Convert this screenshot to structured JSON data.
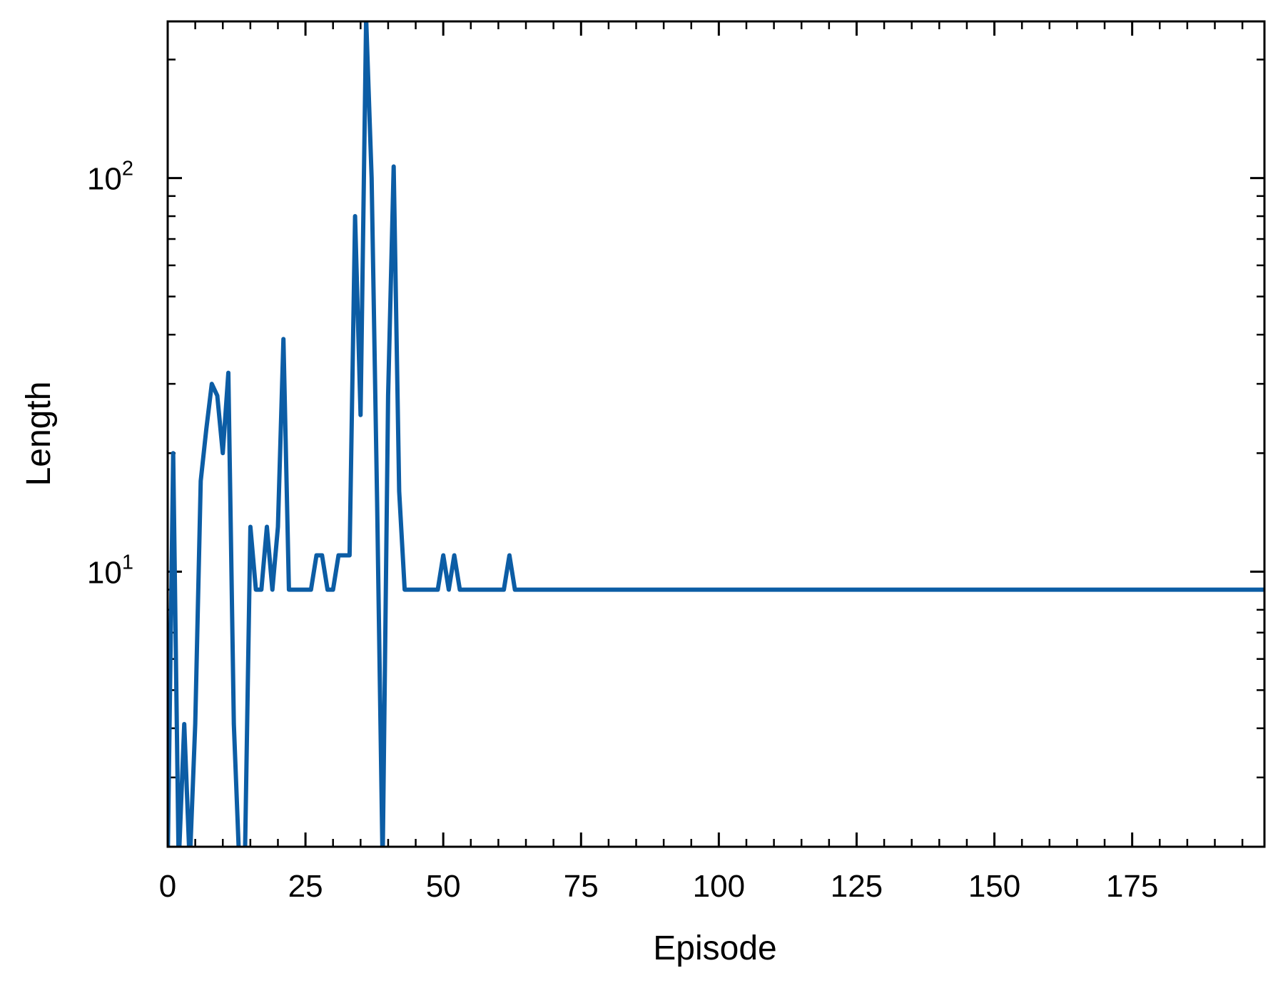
{
  "chart_data": {
    "type": "line",
    "xlabel": "Episode",
    "ylabel": "Length",
    "xlim": [
      0,
      199
    ],
    "ylim": [
      2,
      250
    ],
    "yscale": "log",
    "grid": false,
    "x_ticks": [
      0,
      25,
      50,
      75,
      100,
      125,
      150,
      175
    ],
    "y_ticks": [
      {
        "value": 10,
        "base": "10",
        "exponent": "1"
      },
      {
        "value": 100,
        "base": "10",
        "exponent": "2"
      }
    ],
    "line_color": "#0c5da5",
    "series": [
      {
        "color": "#0c5da5",
        "x": [
          0,
          1,
          2,
          3,
          4,
          5,
          6,
          7,
          8,
          9,
          10,
          11,
          12,
          13,
          14,
          15,
          16,
          17,
          18,
          19,
          20,
          21,
          22,
          23,
          24,
          25,
          26,
          27,
          28,
          29,
          30,
          31,
          32,
          33,
          34,
          35,
          36,
          37,
          38,
          39,
          40,
          41,
          42,
          43,
          44,
          45,
          46,
          47,
          48,
          49,
          50,
          51,
          52,
          53,
          54,
          55,
          56,
          57,
          58,
          59,
          60,
          61,
          62,
          63,
          199
        ],
        "y": [
          1.8,
          20,
          1.8,
          4.1,
          1.8,
          4.1,
          17,
          23,
          30,
          28,
          20,
          32,
          4.1,
          1.8,
          1.8,
          13,
          9,
          9,
          13,
          9,
          13,
          39,
          9,
          9,
          9,
          9,
          9,
          11,
          11,
          9,
          9,
          11,
          11,
          11,
          80,
          25,
          255,
          100,
          15,
          1.8,
          28,
          107,
          16,
          9,
          9,
          9,
          9,
          9,
          9,
          9,
          11,
          9,
          11,
          9,
          9,
          9,
          9,
          9,
          9,
          9,
          9,
          9,
          11,
          9,
          9
        ]
      }
    ]
  }
}
